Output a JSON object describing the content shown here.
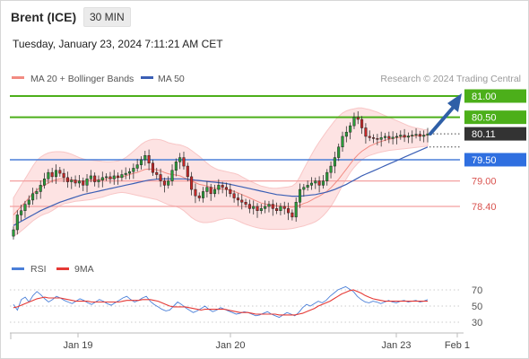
{
  "header": {
    "instrument": "Brent (ICE)",
    "timeframe": "30 MIN",
    "datetime": "Tuesday, January 23, 2024 7:11:21 AM CET"
  },
  "legend": {
    "ma20": "MA 20 + Bollinger Bands",
    "ma50": "MA 50",
    "credit": "Research © 2024 Trading Central",
    "rsi": "RSI",
    "rsi_ma": "9MA"
  },
  "colors": {
    "ma20": "#f28b82",
    "ma50": "#3b5fb5",
    "bollinger_fill": "#fde3e3",
    "resistance": "#4caf1a",
    "pivot": "#4a7fd8",
    "support": "#f3a0a0",
    "candle_up": "#2a9d3a",
    "candle_down": "#c62828",
    "last_price": "#333333",
    "arrow": "#2f5fa7",
    "rsi_line": "#4a7fd8",
    "rsi_ma": "#e53935"
  },
  "chart_data": [
    {
      "type": "candlestick",
      "ylim": [
        78.0,
        81.2
      ],
      "x_labels": [
        "Jan 19",
        "Jan 20",
        "Jan 23",
        "Feb 1"
      ],
      "levels": [
        {
          "label": "81.00",
          "value": 81.0,
          "kind": "resistance"
        },
        {
          "label": "80.50",
          "value": 80.5,
          "kind": "resistance"
        },
        {
          "label": "80.11",
          "value": 80.11,
          "kind": "last"
        },
        {
          "label": "79.50",
          "value": 79.5,
          "kind": "pivot"
        },
        {
          "label": "79.00",
          "value": 79.0,
          "kind": "support"
        },
        {
          "label": "78.40",
          "value": 78.4,
          "kind": "support"
        }
      ],
      "close": [
        77.85,
        78.2,
        78.3,
        78.45,
        78.55,
        78.7,
        78.75,
        78.9,
        79.05,
        79.2,
        79.1,
        79.25,
        79.18,
        79.08,
        78.98,
        79.02,
        78.95,
        79.0,
        78.9,
        79.05,
        79.12,
        78.98,
        79.02,
        79.08,
        79.1,
        79.05,
        79.12,
        79.08,
        79.15,
        79.18,
        79.22,
        79.3,
        79.38,
        79.5,
        79.6,
        79.42,
        79.2,
        79.15,
        79.0,
        78.9,
        79.0,
        79.25,
        79.45,
        79.55,
        79.35,
        79.1,
        78.8,
        78.65,
        78.6,
        78.75,
        78.85,
        78.7,
        78.8,
        78.9,
        78.85,
        78.8,
        78.7,
        78.6,
        78.55,
        78.5,
        78.45,
        78.35,
        78.4,
        78.3,
        78.35,
        78.4,
        78.45,
        78.35,
        78.3,
        78.4,
        78.35,
        78.25,
        78.15,
        78.5,
        78.8,
        78.85,
        78.9,
        78.95,
        79.0,
        78.9,
        79.0,
        79.2,
        79.35,
        79.55,
        79.8,
        80.05,
        80.15,
        80.3,
        80.5,
        80.45,
        80.25,
        80.05,
        80.02,
        80.0,
        79.98,
        80.02,
        80.05,
        80.0,
        80.03,
        80.05,
        80.08,
        80.03,
        80.06,
        80.08,
        80.1,
        80.05,
        80.08,
        80.11
      ],
      "ma20": [
        78.2,
        78.3,
        78.4,
        78.5,
        78.6,
        78.7,
        78.78,
        78.85,
        78.9,
        78.95,
        79.0,
        79.03,
        79.05,
        79.05,
        79.04,
        79.03,
        79.02,
        79.0,
        79.0,
        79.0,
        79.02,
        79.02,
        79.03,
        79.04,
        79.05,
        79.06,
        79.07,
        79.08,
        79.1,
        79.12,
        79.15,
        79.18,
        79.2,
        79.24,
        79.27,
        79.28,
        79.28,
        79.26,
        79.24,
        79.2,
        79.17,
        79.15,
        79.14,
        79.12,
        79.08,
        79.04,
        79.0,
        78.96,
        78.92,
        78.9,
        78.88,
        78.85,
        78.83,
        78.82,
        78.81,
        78.8,
        78.78,
        78.75,
        78.72,
        78.68,
        78.64,
        78.6,
        78.56,
        78.52,
        78.48,
        78.46,
        78.44,
        78.43,
        78.42,
        78.41,
        78.4,
        78.39,
        78.38,
        78.4,
        78.43,
        78.47,
        78.5,
        78.55,
        78.6,
        78.64,
        78.7,
        78.76,
        78.84,
        78.94,
        79.04,
        79.16,
        79.28,
        79.4,
        79.52,
        79.62,
        79.7,
        79.76,
        79.82,
        79.86,
        79.9,
        79.93,
        79.96,
        79.98,
        80.0,
        80.02,
        80.03,
        80.04,
        80.05,
        80.06,
        80.06,
        80.07,
        80.07,
        80.08
      ],
      "bb_upper": [
        78.6,
        78.75,
        78.9,
        79.05,
        79.2,
        79.35,
        79.48,
        79.56,
        79.62,
        79.66,
        79.68,
        79.69,
        79.69,
        79.68,
        79.66,
        79.63,
        79.59,
        79.55,
        79.52,
        79.5,
        79.49,
        79.48,
        79.47,
        79.46,
        79.45,
        79.45,
        79.46,
        79.47,
        79.5,
        79.55,
        79.62,
        79.7,
        79.78,
        79.86,
        79.92,
        79.96,
        79.98,
        79.98,
        79.97,
        79.94,
        79.9,
        79.88,
        79.86,
        79.85,
        79.82,
        79.78,
        79.72,
        79.65,
        79.58,
        79.5,
        79.42,
        79.35,
        79.3,
        79.26,
        79.24,
        79.22,
        79.2,
        79.18,
        79.15,
        79.1,
        79.05,
        79.0,
        78.96,
        78.92,
        78.88,
        78.86,
        78.84,
        78.83,
        78.83,
        78.84,
        78.85,
        78.86,
        78.88,
        78.95,
        79.1,
        79.28,
        79.45,
        79.62,
        79.78,
        79.92,
        80.05,
        80.18,
        80.3,
        80.42,
        80.52,
        80.6,
        80.65,
        80.68,
        80.7,
        80.72,
        80.72,
        80.7,
        80.68,
        80.65,
        80.62,
        80.58,
        80.54,
        80.5,
        80.46,
        80.42,
        80.38,
        80.34,
        80.3,
        80.27,
        80.25,
        80.23,
        80.21,
        80.2
      ],
      "bb_lower": [
        77.7,
        77.75,
        77.82,
        77.9,
        77.98,
        78.06,
        78.12,
        78.18,
        78.22,
        78.25,
        78.3,
        78.36,
        78.42,
        78.46,
        78.48,
        78.5,
        78.52,
        78.53,
        78.54,
        78.55,
        78.56,
        78.58,
        78.6,
        78.62,
        78.65,
        78.68,
        78.7,
        78.72,
        78.73,
        78.72,
        78.7,
        78.68,
        78.66,
        78.64,
        78.62,
        78.6,
        78.58,
        78.56,
        78.52,
        78.48,
        78.44,
        78.42,
        78.4,
        78.36,
        78.3,
        78.22,
        78.14,
        78.08,
        78.04,
        78.02,
        78.02,
        78.03,
        78.05,
        78.08,
        78.1,
        78.12,
        78.12,
        78.1,
        78.06,
        78.02,
        77.98,
        77.95,
        77.92,
        77.9,
        77.88,
        77.87,
        77.86,
        77.86,
        77.86,
        77.86,
        77.86,
        77.87,
        77.88,
        77.9,
        77.92,
        77.94,
        77.97,
        78.0,
        78.04,
        78.1,
        78.18,
        78.28,
        78.4,
        78.55,
        78.72,
        78.9,
        79.05,
        79.2,
        79.32,
        79.42,
        79.5,
        79.56,
        79.6,
        79.63,
        79.66,
        79.68,
        79.7,
        79.72,
        79.73,
        79.74,
        79.75,
        79.76,
        79.77,
        79.78,
        79.79,
        79.8,
        79.81,
        79.82
      ],
      "ma50": [
        77.95,
        78.0,
        78.05,
        78.1,
        78.15,
        78.2,
        78.25,
        78.3,
        78.34,
        78.38,
        78.42,
        78.46,
        78.5,
        78.53,
        78.56,
        78.59,
        78.62,
        78.65,
        78.68,
        78.7,
        78.72,
        78.74,
        78.76,
        78.78,
        78.8,
        78.82,
        78.84,
        78.86,
        78.88,
        78.9,
        78.92,
        78.94,
        78.96,
        78.98,
        79.0,
        79.02,
        79.03,
        79.04,
        79.05,
        79.05,
        79.05,
        79.05,
        79.05,
        79.05,
        79.05,
        79.04,
        79.03,
        79.02,
        79.01,
        79.0,
        78.99,
        78.98,
        78.97,
        78.96,
        78.95,
        78.94,
        78.92,
        78.9,
        78.88,
        78.86,
        78.84,
        78.82,
        78.8,
        78.78,
        78.76,
        78.74,
        78.72,
        78.7,
        78.68,
        78.67,
        78.66,
        78.65,
        78.64,
        78.64,
        78.64,
        78.65,
        78.66,
        78.67,
        78.68,
        78.7,
        78.72,
        78.74,
        78.77,
        78.8,
        78.84,
        78.88,
        78.92,
        78.97,
        79.02,
        79.07,
        79.12,
        79.16,
        79.2,
        79.24,
        79.28,
        79.32,
        79.36,
        79.4,
        79.44,
        79.48,
        79.52,
        79.56,
        79.6,
        79.64,
        79.68,
        79.72,
        79.76,
        79.8
      ]
    },
    {
      "type": "line",
      "ylim": [
        20,
        80
      ],
      "y_ticks": [
        "70",
        "50",
        "30"
      ],
      "series": [
        {
          "name": "RSI",
          "values": [
            52,
            45,
            58,
            61,
            55,
            63,
            68,
            64,
            59,
            55,
            58,
            62,
            60,
            57,
            55,
            53,
            56,
            59,
            57,
            54,
            52,
            55,
            58,
            56,
            53,
            51,
            54,
            57,
            60,
            62,
            58,
            55,
            57,
            60,
            62,
            56,
            52,
            49,
            46,
            44,
            45,
            50,
            55,
            52,
            48,
            45,
            42,
            44,
            47,
            50,
            46,
            43,
            45,
            48,
            46,
            44,
            42,
            40,
            41,
            43,
            42,
            40,
            38,
            39,
            41,
            43,
            40,
            38,
            36,
            39,
            42,
            40,
            38,
            42,
            48,
            52,
            50,
            53,
            56,
            54,
            57,
            62,
            66,
            70,
            72,
            74,
            71,
            68,
            62,
            58,
            55,
            54,
            56,
            55,
            53,
            55,
            57,
            55,
            54,
            56,
            57,
            55,
            56,
            57,
            55,
            56,
            58
          ]
        },
        {
          "name": "9MA",
          "values": [
            48,
            49,
            51,
            53,
            55,
            57,
            59,
            60,
            61,
            60,
            60,
            60,
            60,
            59,
            58,
            57,
            56,
            56,
            56,
            56,
            55,
            55,
            55,
            55,
            55,
            55,
            55,
            55,
            56,
            57,
            57,
            57,
            57,
            58,
            58,
            58,
            57,
            56,
            54,
            52,
            50,
            49,
            49,
            49,
            49,
            48,
            47,
            46,
            45,
            46,
            46,
            46,
            46,
            46,
            46,
            45,
            44,
            43,
            42,
            42,
            42,
            41,
            40,
            40,
            40,
            40,
            40,
            40,
            39,
            39,
            39,
            39,
            39,
            40,
            41,
            43,
            45,
            47,
            50,
            52,
            54,
            56,
            59,
            62,
            65,
            67,
            69,
            70,
            68,
            66,
            63,
            61,
            59,
            58,
            57,
            56,
            56,
            56,
            56,
            56,
            56,
            56,
            56,
            56,
            56,
            56,
            56
          ]
        }
      ]
    }
  ]
}
